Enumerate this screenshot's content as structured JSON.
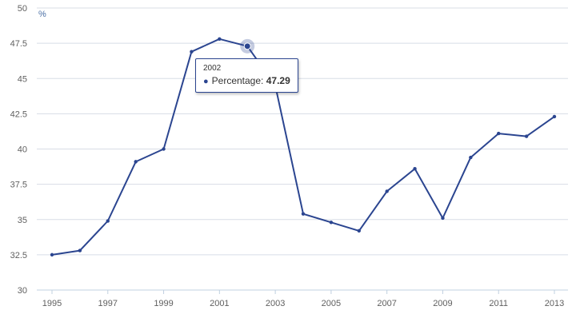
{
  "colors": {
    "series": "#2b4590",
    "grid": "#d8dde6",
    "tooltip_border": "#2b4590"
  },
  "chart_data": {
    "type": "line",
    "unit_label": "%",
    "y_ticks": [
      "30",
      "32.5",
      "35",
      "37.5",
      "40",
      "42.5",
      "45",
      "47.5",
      "50"
    ],
    "x_ticks": [
      "1995",
      "1997",
      "1999",
      "2001",
      "2003",
      "2005",
      "2007",
      "2009",
      "2011",
      "2013"
    ],
    "ylim": [
      30,
      50
    ],
    "xlim": [
      1995,
      2013
    ],
    "grid": true,
    "series": [
      {
        "name": "Percentage",
        "x": [
          1995,
          1996,
          1997,
          1998,
          1999,
          2000,
          2001,
          2002,
          2003,
          2004,
          2005,
          2006,
          2007,
          2008,
          2009,
          2010,
          2011,
          2012,
          2013
        ],
        "y": [
          32.5,
          32.8,
          34.9,
          39.1,
          40.0,
          46.9,
          47.8,
          47.29,
          44.5,
          35.4,
          34.8,
          34.2,
          37.0,
          38.6,
          35.1,
          39.4,
          41.1,
          40.9,
          42.3
        ]
      }
    ],
    "tooltip": {
      "year": "2002",
      "label": "Percentage:",
      "value": "47.29",
      "highlight_x": 2002
    }
  }
}
